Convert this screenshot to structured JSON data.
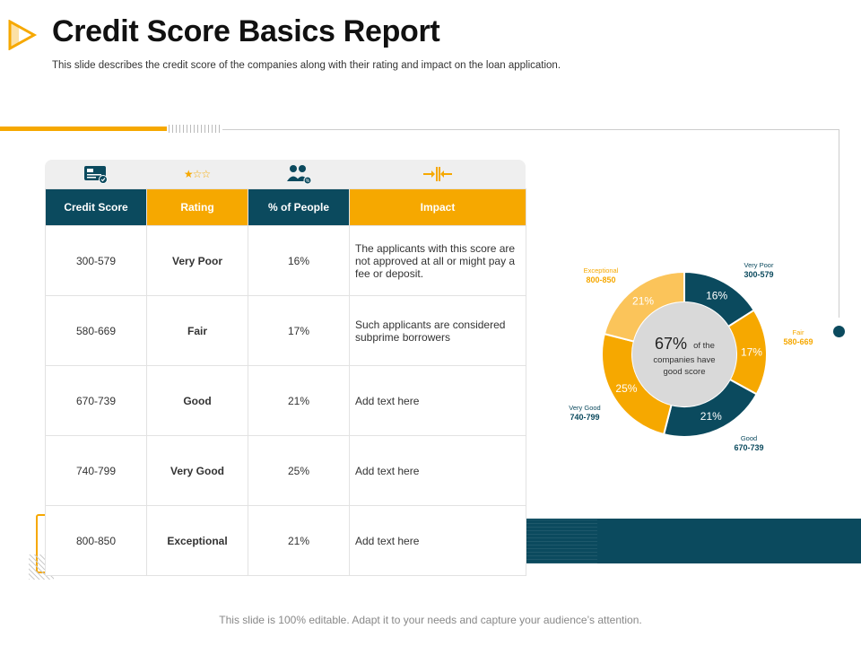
{
  "title": "Credit Score Basics Report",
  "subtitle": "This slide describes the credit score of the companies along with their rating and impact on the loan application.",
  "footer": "This slide is 100% editable. Adapt it to your needs and capture your audience’s attention.",
  "table": {
    "headers": [
      "Credit Score",
      "Rating",
      "% of People",
      "Impact"
    ],
    "icons": [
      "credit-card-icon",
      "star-rating-icon",
      "people-icon",
      "impact-arrows-icon"
    ],
    "rows": [
      {
        "score": "300-579",
        "rating": "Very Poor",
        "percent": "16%",
        "impact": "The applicants with this score are not approved at all or might pay a fee or deposit."
      },
      {
        "score": "580-669",
        "rating": "Fair",
        "percent": "17%",
        "impact": "Such applicants are considered subprime borrowers"
      },
      {
        "score": "670-739",
        "rating": "Good",
        "percent": "21%",
        "impact": "Add text here"
      },
      {
        "score": "740-799",
        "rating": "Very Good",
        "percent": "25%",
        "impact": "Add text here"
      },
      {
        "score": "800-850",
        "rating": "Exceptional",
        "percent": "21%",
        "impact": "Add text here"
      }
    ]
  },
  "donut": {
    "center_value": "67%",
    "center_text_1": "of the",
    "center_text_2": "companies have",
    "center_text_3": "good score",
    "segments": [
      {
        "label": "Very Poor",
        "range": "300-579",
        "value": 16,
        "text": "16%",
        "color": "#0b4a5e"
      },
      {
        "label": "Fair",
        "range": "580-669",
        "value": 17,
        "text": "17%",
        "color": "#f6a800"
      },
      {
        "label": "Good",
        "range": "670-739",
        "value": 21,
        "text": "21%",
        "color": "#0b4a5e"
      },
      {
        "label": "Very Good",
        "range": "740-799",
        "value": 25,
        "text": "25%",
        "color": "#f6a800"
      },
      {
        "label": "Exceptional",
        "range": "800-850",
        "value": 21,
        "text": "21%",
        "color": "#fbc45a"
      }
    ]
  },
  "colors": {
    "dark": "#0b4a5e",
    "orange": "#f6a800",
    "light_orange": "#fbc45a"
  }
}
